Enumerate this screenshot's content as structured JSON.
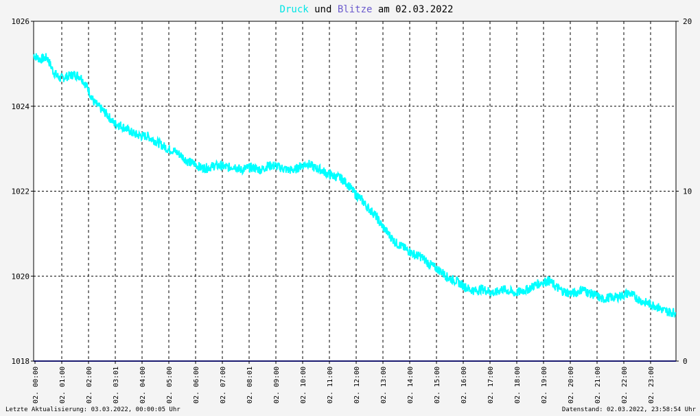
{
  "chart_data": {
    "type": "line",
    "title_parts": [
      {
        "text": "Druck",
        "color": "#00e5e5"
      },
      {
        "text": " und ",
        "color": "#000000"
      },
      {
        "text": "Blitze",
        "color": "#6a5acd"
      },
      {
        "text": " am 02.03.2022",
        "color": "#000000"
      }
    ],
    "y_left_lim": [
      1018,
      1026
    ],
    "y_left_ticks": [
      "1018",
      "1020",
      "1022",
      "1024",
      "1026"
    ],
    "y_right_lim": [
      0,
      20
    ],
    "y_right_ticks": [
      "0",
      "10",
      "20"
    ],
    "x_lim_hours": [
      0,
      24
    ],
    "x_ticks": [
      "02. 00:00",
      "02. 01:00",
      "02. 02:00",
      "02. 03:01",
      "02. 04:00",
      "02. 05:00",
      "02. 06:00",
      "02. 07:00",
      "02. 08:01",
      "02. 09:00",
      "02. 10:00",
      "02. 11:00",
      "02. 12:00",
      "02. 13:00",
      "02. 14:00",
      "02. 15:00",
      "02. 16:00",
      "02. 17:00",
      "02. 18:00",
      "02. 19:00",
      "02. 20:00",
      "02. 21:00",
      "02. 22:00",
      "02. 23:00"
    ],
    "grid": true,
    "series": [
      {
        "key": "druck",
        "axis": "left",
        "color": "#00ffff",
        "points": [
          [
            0.0,
            1025.2
          ],
          [
            0.25,
            1025.1
          ],
          [
            0.5,
            1025.15
          ],
          [
            0.75,
            1024.8
          ],
          [
            1.0,
            1024.65
          ],
          [
            1.25,
            1024.7
          ],
          [
            1.5,
            1024.75
          ],
          [
            1.75,
            1024.7
          ],
          [
            2.0,
            1024.45
          ],
          [
            2.25,
            1024.1
          ],
          [
            2.5,
            1023.95
          ],
          [
            2.75,
            1023.8
          ],
          [
            3.0,
            1023.6
          ],
          [
            3.25,
            1023.55
          ],
          [
            3.5,
            1023.45
          ],
          [
            3.75,
            1023.35
          ],
          [
            4.0,
            1023.3
          ],
          [
            4.25,
            1023.3
          ],
          [
            4.5,
            1023.2
          ],
          [
            4.75,
            1023.1
          ],
          [
            5.0,
            1023.0
          ],
          [
            5.25,
            1022.95
          ],
          [
            5.5,
            1022.85
          ],
          [
            5.75,
            1022.7
          ],
          [
            6.0,
            1022.65
          ],
          [
            6.25,
            1022.55
          ],
          [
            6.5,
            1022.55
          ],
          [
            6.75,
            1022.6
          ],
          [
            7.0,
            1022.6
          ],
          [
            7.25,
            1022.55
          ],
          [
            7.5,
            1022.6
          ],
          [
            7.75,
            1022.5
          ],
          [
            8.0,
            1022.55
          ],
          [
            8.25,
            1022.55
          ],
          [
            8.5,
            1022.5
          ],
          [
            8.75,
            1022.6
          ],
          [
            9.0,
            1022.6
          ],
          [
            9.25,
            1022.55
          ],
          [
            9.5,
            1022.5
          ],
          [
            9.75,
            1022.5
          ],
          [
            10.0,
            1022.6
          ],
          [
            10.25,
            1022.65
          ],
          [
            10.5,
            1022.55
          ],
          [
            10.75,
            1022.5
          ],
          [
            11.0,
            1022.4
          ],
          [
            11.25,
            1022.35
          ],
          [
            11.5,
            1022.3
          ],
          [
            11.75,
            1022.15
          ],
          [
            12.0,
            1021.95
          ],
          [
            12.25,
            1021.8
          ],
          [
            12.5,
            1021.6
          ],
          [
            12.75,
            1021.45
          ],
          [
            13.0,
            1021.2
          ],
          [
            13.25,
            1021.0
          ],
          [
            13.5,
            1020.8
          ],
          [
            13.75,
            1020.7
          ],
          [
            14.0,
            1020.6
          ],
          [
            14.25,
            1020.5
          ],
          [
            14.5,
            1020.45
          ],
          [
            14.75,
            1020.3
          ],
          [
            15.0,
            1020.2
          ],
          [
            15.25,
            1020.1
          ],
          [
            15.5,
            1019.95
          ],
          [
            15.75,
            1019.9
          ],
          [
            16.0,
            1019.8
          ],
          [
            16.25,
            1019.7
          ],
          [
            16.5,
            1019.65
          ],
          [
            16.75,
            1019.7
          ],
          [
            17.0,
            1019.65
          ],
          [
            17.25,
            1019.6
          ],
          [
            17.5,
            1019.7
          ],
          [
            17.75,
            1019.65
          ],
          [
            18.0,
            1019.6
          ],
          [
            18.25,
            1019.65
          ],
          [
            18.5,
            1019.7
          ],
          [
            18.75,
            1019.8
          ],
          [
            19.0,
            1019.85
          ],
          [
            19.25,
            1019.9
          ],
          [
            19.5,
            1019.75
          ],
          [
            19.75,
            1019.65
          ],
          [
            20.0,
            1019.6
          ],
          [
            20.25,
            1019.6
          ],
          [
            20.5,
            1019.7
          ],
          [
            20.75,
            1019.6
          ],
          [
            21.0,
            1019.55
          ],
          [
            21.25,
            1019.45
          ],
          [
            21.5,
            1019.5
          ],
          [
            21.75,
            1019.5
          ],
          [
            22.0,
            1019.55
          ],
          [
            22.25,
            1019.6
          ],
          [
            22.5,
            1019.5
          ],
          [
            22.75,
            1019.4
          ],
          [
            23.0,
            1019.35
          ],
          [
            23.25,
            1019.3
          ],
          [
            23.5,
            1019.2
          ],
          [
            23.75,
            1019.15
          ],
          [
            23.98,
            1019.15
          ]
        ]
      },
      {
        "key": "blitze",
        "axis": "right",
        "color": "#191970",
        "points": [
          [
            0,
            0
          ],
          [
            24,
            0
          ]
        ]
      }
    ]
  },
  "footer": {
    "left": "Letzte Aktualisierung: 03.03.2022, 00:00:05 Uhr",
    "right": "Datenstand: 02.03.2022, 23:58:54 Uhr"
  }
}
